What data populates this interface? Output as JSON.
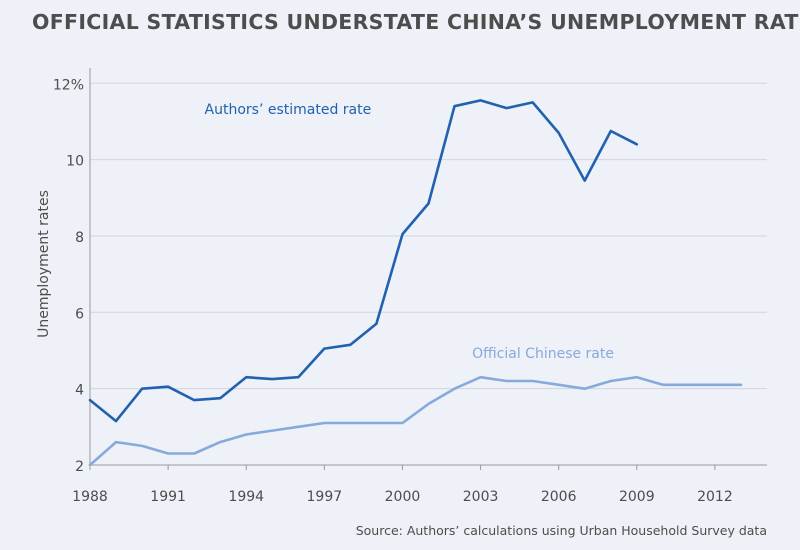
{
  "header": {
    "title": "OFFICIAL STATISTICS UNDERSTATE CHINA’S UNEMPLOYMENT RATE"
  },
  "footer": {
    "source": "Source: Authors’ calculations using Urban Household Survey data"
  },
  "colors": {
    "background": "#eef1f7",
    "estimated": "#2061b0",
    "official": "#86aadc",
    "grid": "#d3d6dd",
    "axis": "#999999",
    "text": "#4d4d4d"
  },
  "chart_data": {
    "type": "line",
    "title": "OFFICIAL STATISTICS UNDERSTATE CHINA’S UNEMPLOYMENT RATE",
    "xlabel": "",
    "ylabel": "Unemployment rates",
    "xlim": [
      1988,
      2014
    ],
    "ylim": [
      2,
      12.4
    ],
    "x_ticks": [
      1988,
      1991,
      1994,
      1997,
      2000,
      2003,
      2006,
      2009,
      2012
    ],
    "y_ticks": [
      {
        "value": 2,
        "label": "2"
      },
      {
        "value": 4,
        "label": "4"
      },
      {
        "value": 6,
        "label": "6"
      },
      {
        "value": 8,
        "label": "8"
      },
      {
        "value": 10,
        "label": "10"
      },
      {
        "value": 12,
        "label": "12%"
      }
    ],
    "grid": true,
    "series": [
      {
        "name": "Authors’ estimated rate",
        "color": "#2061b0",
        "x": [
          1988,
          1989,
          1990,
          1991,
          1992,
          1993,
          1994,
          1995,
          1996,
          1997,
          1998,
          1999,
          2000,
          2001,
          2002,
          2003,
          2004,
          2005,
          2006,
          2007,
          2008,
          2009
        ],
        "y": [
          3.7,
          3.15,
          4.0,
          4.05,
          3.7,
          3.75,
          4.3,
          4.25,
          4.3,
          5.05,
          5.15,
          5.7,
          8.05,
          8.85,
          11.4,
          11.55,
          11.35,
          11.5,
          10.7,
          9.45,
          10.75,
          10.4
        ],
        "label_anchor": {
          "x": 1995.6,
          "y": 11.2
        }
      },
      {
        "name": "Official Chinese rate",
        "color": "#86aadc",
        "x": [
          1988,
          1989,
          1990,
          1991,
          1992,
          1993,
          1994,
          1995,
          1996,
          1997,
          1998,
          1999,
          2000,
          2001,
          2002,
          2003,
          2004,
          2005,
          2006,
          2007,
          2008,
          2009,
          2010,
          2011,
          2012,
          2013
        ],
        "y": [
          2.0,
          2.6,
          2.5,
          2.3,
          2.3,
          2.6,
          2.8,
          2.9,
          3.0,
          3.1,
          3.1,
          3.1,
          3.1,
          3.6,
          4.0,
          4.3,
          4.2,
          4.2,
          4.1,
          4.0,
          4.2,
          4.3,
          4.1,
          4.1,
          4.1,
          4.1
        ],
        "label_anchor": {
          "x": 2005.4,
          "y": 4.8
        }
      }
    ]
  }
}
